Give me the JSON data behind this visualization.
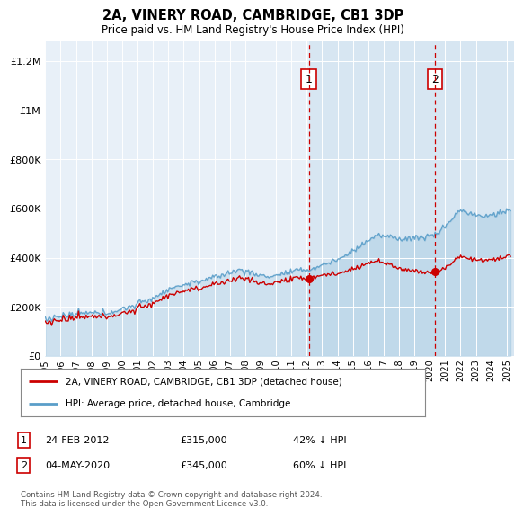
{
  "title": "2A, VINERY ROAD, CAMBRIDGE, CB1 3DP",
  "subtitle": "Price paid vs. HM Land Registry's House Price Index (HPI)",
  "ylabel_ticks": [
    "£0",
    "£200K",
    "£400K",
    "£600K",
    "£800K",
    "£1M",
    "£1.2M"
  ],
  "ytick_vals": [
    0,
    200000,
    400000,
    600000,
    800000,
    1000000,
    1200000
  ],
  "ylim": [
    0,
    1280000
  ],
  "xlim_start": 1995,
  "xlim_end": 2025.5,
  "bg_color": "#e8f0f8",
  "fill_color": "#ccdff0",
  "line1_color": "#cc0000",
  "line2_color": "#5a9ec9",
  "transaction1_date": 2012.14,
  "transaction1_price": 315000,
  "transaction2_date": 2020.34,
  "transaction2_price": 345000,
  "legend_line1": "2A, VINERY ROAD, CAMBRIDGE, CB1 3DP (detached house)",
  "legend_line2": "HPI: Average price, detached house, Cambridge",
  "annotation1_date": "24-FEB-2012",
  "annotation1_price": "£315,000",
  "annotation1_hpi": "42% ↓ HPI",
  "annotation2_date": "04-MAY-2020",
  "annotation2_price": "£345,000",
  "annotation2_hpi": "60% ↓ HPI",
  "footer": "Contains HM Land Registry data © Crown copyright and database right 2024.\nThis data is licensed under the Open Government Licence v3.0."
}
